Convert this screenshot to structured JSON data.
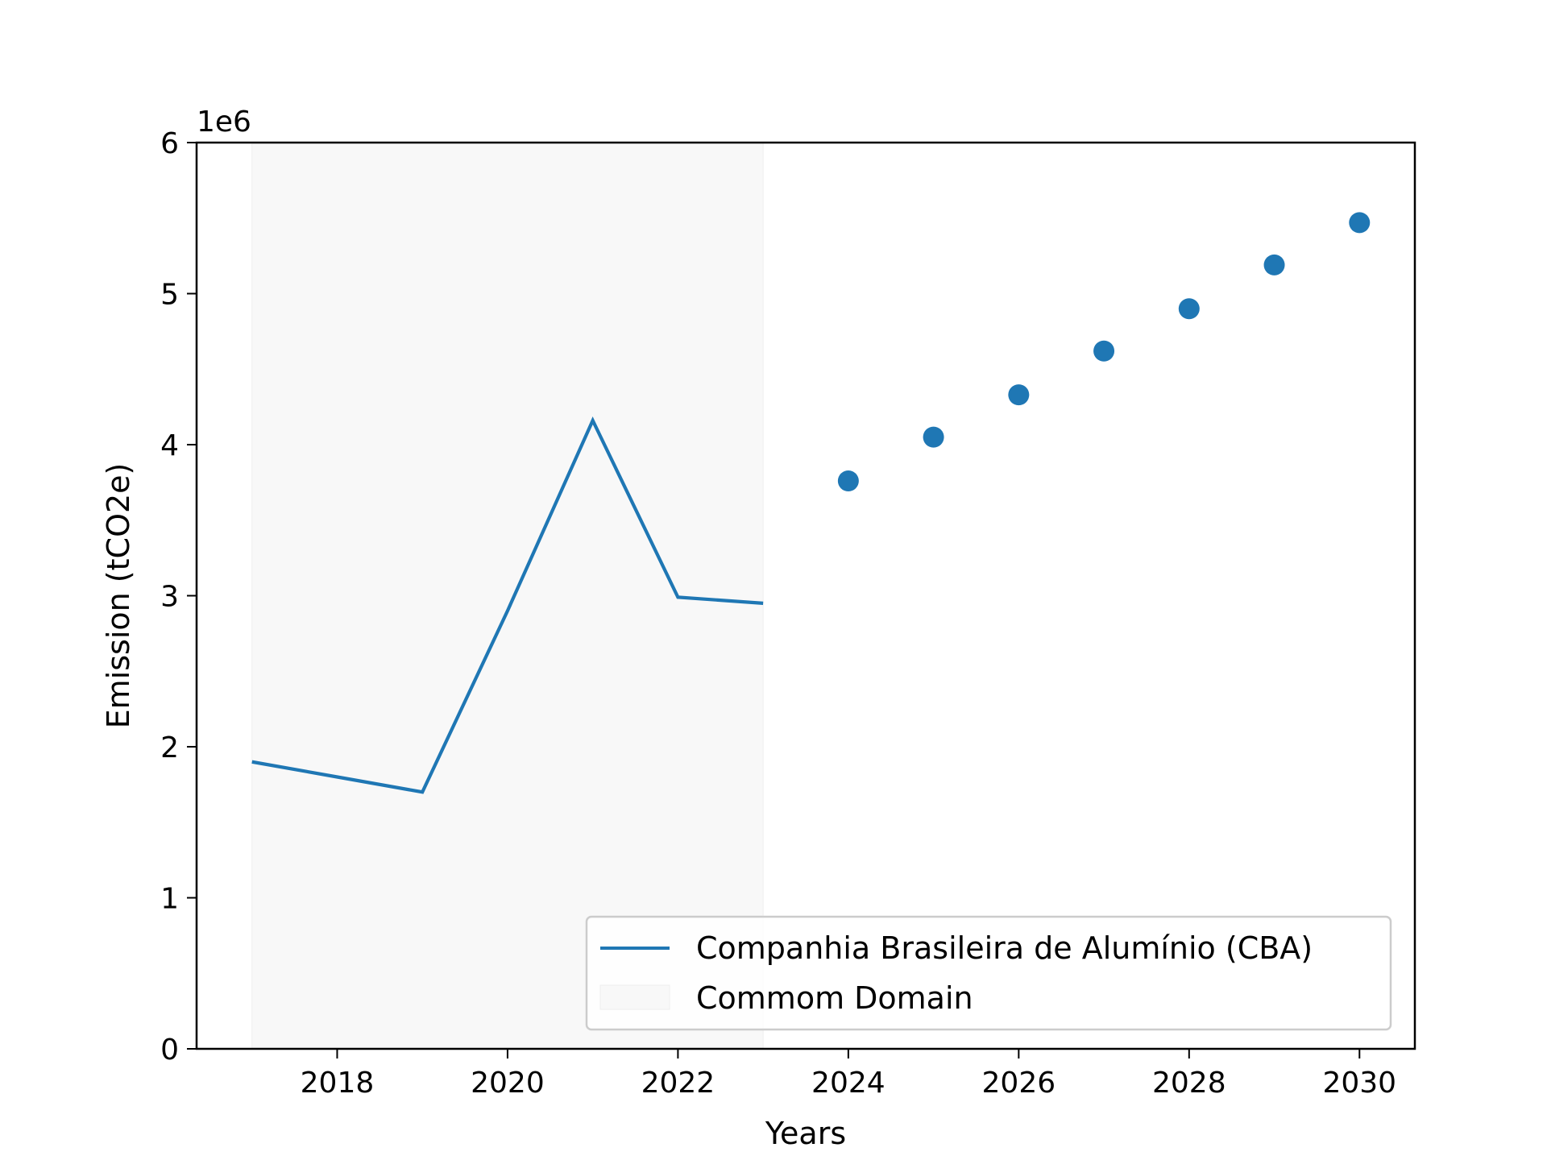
{
  "chart_data": {
    "type": "line",
    "xlabel": "Years",
    "ylabel": "Emission (tCO2e)",
    "y_multiplier_label": "1e6",
    "xlim": [
      2016.35,
      2030.65
    ],
    "ylim": [
      0,
      6000000
    ],
    "x_ticks": [
      2018,
      2020,
      2022,
      2024,
      2026,
      2028,
      2030
    ],
    "x_tick_labels": [
      "2018",
      "2020",
      "2022",
      "2024",
      "2026",
      "2028",
      "2030"
    ],
    "y_ticks": [
      0,
      1000000,
      2000000,
      3000000,
      4000000,
      5000000,
      6000000
    ],
    "y_tick_labels": [
      "0",
      "1",
      "2",
      "3",
      "4",
      "5",
      "6"
    ],
    "grid": false,
    "legend_position": "lower-right",
    "series": [
      {
        "name": "Companhia Brasileira de Alumínio (CBA)",
        "kind": "line",
        "color": "#1f77b4",
        "x": [
          2017,
          2018,
          2019,
          2020,
          2021,
          2022,
          2023
        ],
        "y": [
          1900000,
          1800000,
          1700000,
          2900000,
          4160000,
          2990000,
          2950000
        ]
      },
      {
        "kind": "scatter",
        "color": "#1f77b4",
        "x": [
          2024,
          2025,
          2026,
          2027,
          2028,
          2029,
          2030
        ],
        "y": [
          3760000,
          4050000,
          4330000,
          4620000,
          4900000,
          5190000,
          5470000
        ]
      }
    ],
    "shaded_region": {
      "name": "Commom Domain",
      "x_range": [
        2017,
        2023
      ],
      "color": "#f8f8f8"
    }
  }
}
